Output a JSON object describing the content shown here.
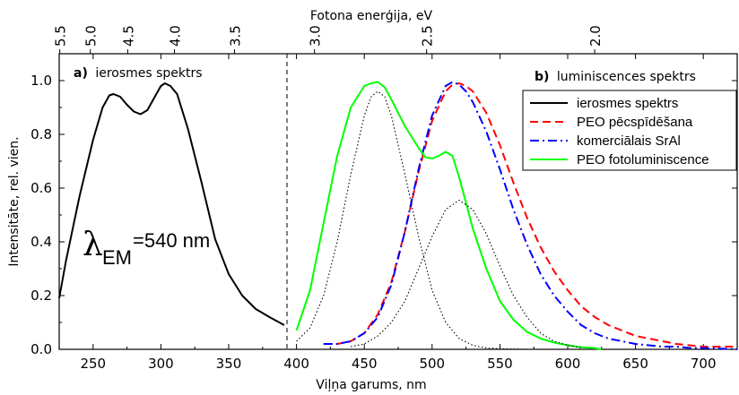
{
  "chart_data": {
    "type": "line",
    "top_axis_label": "Fotona enerģija, eV",
    "top_ticks": [
      "5.5",
      "5.0",
      "4.5",
      "4.0",
      "3.5",
      "3.0",
      "2.5",
      "2.0"
    ],
    "xlabel": "Viļņa garums, nm",
    "ylabel": "Intensitāte, rel. vien.",
    "xlim": [
      225,
      725
    ],
    "ylim": [
      0,
      1.1
    ],
    "x_ticks": [
      "250",
      "300",
      "350",
      "400",
      "450",
      "500",
      "550",
      "600",
      "650",
      "700"
    ],
    "y_ticks": [
      "0.0",
      "0.2",
      "0.4",
      "0.6",
      "0.8",
      "1.0"
    ],
    "divider_x": 393,
    "lambda_label": "=540 nm",
    "lambda_sub": "EM",
    "annotations": [
      {
        "bold": "a)",
        "text": "ierosmes spektrs"
      },
      {
        "bold": "b)",
        "text": "luminiscences spektrs"
      }
    ],
    "legend_position": "top-right",
    "series": [
      {
        "name": "ierosmes spektrs",
        "color": "#000000",
        "dash": "solid",
        "x": [
          225,
          230,
          240,
          250,
          257,
          262,
          265,
          270,
          275,
          280,
          285,
          290,
          295,
          300,
          303,
          307,
          312,
          320,
          330,
          340,
          350,
          360,
          370,
          380,
          391
        ],
        "y": [
          0.19,
          0.33,
          0.57,
          0.78,
          0.9,
          0.945,
          0.95,
          0.94,
          0.91,
          0.885,
          0.875,
          0.89,
          0.935,
          0.98,
          0.99,
          0.98,
          0.95,
          0.82,
          0.62,
          0.41,
          0.28,
          0.2,
          0.15,
          0.12,
          0.09
        ]
      },
      {
        "name": "PEO pēcspīdēšana",
        "color": "#ff0000",
        "dash": "dash",
        "x": [
          420,
          430,
          440,
          450,
          460,
          470,
          480,
          490,
          500,
          510,
          515,
          520,
          525,
          530,
          540,
          550,
          560,
          570,
          580,
          590,
          600,
          610,
          620,
          630,
          640,
          650,
          660,
          670,
          680,
          690,
          700,
          725
        ],
        "y": [
          0.02,
          0.02,
          0.03,
          0.06,
          0.13,
          0.25,
          0.44,
          0.66,
          0.85,
          0.96,
          0.985,
          0.99,
          0.98,
          0.96,
          0.88,
          0.76,
          0.62,
          0.49,
          0.38,
          0.29,
          0.22,
          0.16,
          0.12,
          0.09,
          0.07,
          0.05,
          0.04,
          0.03,
          0.02,
          0.015,
          0.01,
          0.01
        ]
      },
      {
        "name": "komerciālais SrAl",
        "color": "#0000ff",
        "dash": "dashdot",
        "x": [
          420,
          430,
          440,
          450,
          460,
          470,
          480,
          490,
          500,
          510,
          515,
          520,
          525,
          530,
          540,
          550,
          560,
          570,
          580,
          590,
          600,
          610,
          620,
          630,
          640,
          650,
          660,
          670,
          680,
          690,
          700,
          725
        ],
        "y": [
          0.02,
          0.02,
          0.03,
          0.06,
          0.12,
          0.24,
          0.44,
          0.67,
          0.87,
          0.98,
          0.995,
          0.985,
          0.96,
          0.92,
          0.81,
          0.67,
          0.52,
          0.39,
          0.28,
          0.2,
          0.14,
          0.09,
          0.06,
          0.04,
          0.03,
          0.02,
          0.015,
          0.01,
          0.01,
          0.005,
          0.005,
          0.0
        ]
      },
      {
        "name": "PEO fotoluminiscence",
        "color": "#00ff00",
        "dash": "solid",
        "x": [
          400,
          410,
          420,
          430,
          440,
          450,
          455,
          460,
          465,
          470,
          480,
          490,
          495,
          500,
          505,
          510,
          515,
          520,
          530,
          540,
          550,
          560,
          570,
          580,
          590,
          600,
          610,
          620,
          625
        ],
        "y": [
          0.07,
          0.22,
          0.47,
          0.72,
          0.9,
          0.98,
          0.99,
          0.995,
          0.975,
          0.93,
          0.83,
          0.75,
          0.715,
          0.71,
          0.72,
          0.735,
          0.72,
          0.64,
          0.45,
          0.3,
          0.18,
          0.11,
          0.065,
          0.04,
          0.025,
          0.015,
          0.008,
          0.004,
          0.0
        ]
      },
      {
        "name": "",
        "color": "#000000",
        "dash": "dot",
        "x": [
          400,
          410,
          420,
          430,
          440,
          450,
          455,
          460,
          465,
          470,
          480,
          490,
          500,
          510,
          520,
          530,
          540,
          550,
          560,
          570
        ],
        "y": [
          0.03,
          0.08,
          0.2,
          0.4,
          0.65,
          0.87,
          0.94,
          0.96,
          0.94,
          0.87,
          0.65,
          0.42,
          0.22,
          0.1,
          0.04,
          0.015,
          0.005,
          0.002,
          0.001,
          0.0
        ]
      },
      {
        "name": "",
        "color": "#000000",
        "dash": "dot",
        "x": [
          440,
          450,
          460,
          470,
          480,
          490,
          500,
          510,
          520,
          530,
          540,
          550,
          560,
          570,
          580,
          590,
          600,
          610
        ],
        "y": [
          0.01,
          0.02,
          0.05,
          0.1,
          0.18,
          0.3,
          0.42,
          0.52,
          0.555,
          0.52,
          0.43,
          0.31,
          0.2,
          0.12,
          0.06,
          0.03,
          0.015,
          0.005
        ]
      }
    ]
  }
}
